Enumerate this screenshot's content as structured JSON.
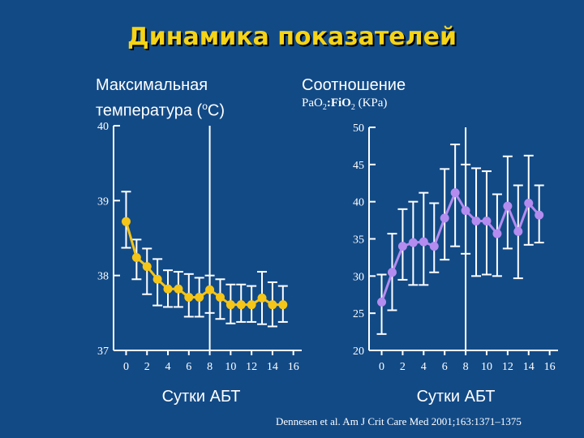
{
  "title": "Динамика показателей",
  "chart_data": [
    {
      "type": "line",
      "title_line1": "Максимальная",
      "title_line2_prefix": "температура (",
      "title_line2_sup": "o",
      "title_line2_suffix": "C)",
      "xlabel": "Сутки АБТ",
      "xlim": [
        -1.2,
        16.8
      ],
      "ylim": [
        37,
        40
      ],
      "yticks": [
        37,
        38,
        39,
        40
      ],
      "xticks": [
        0,
        2,
        4,
        6,
        8,
        10,
        12,
        14,
        16
      ],
      "vline_x": 8,
      "color": "#f5c518",
      "x": [
        0,
        1,
        2,
        3,
        4,
        5,
        6,
        7,
        8,
        9,
        10,
        11,
        12,
        13,
        14,
        15
      ],
      "y": [
        38.72,
        38.24,
        38.12,
        37.95,
        37.82,
        37.82,
        37.71,
        37.71,
        37.81,
        37.71,
        37.61,
        37.61,
        37.61,
        37.7,
        37.61,
        37.61
      ],
      "err_low": [
        38.37,
        37.95,
        37.75,
        37.6,
        37.58,
        37.58,
        37.45,
        37.45,
        37.5,
        37.42,
        37.36,
        37.38,
        37.38,
        37.35,
        37.32,
        37.38
      ],
      "err_high": [
        39.12,
        38.48,
        38.36,
        38.22,
        38.07,
        38.05,
        38.02,
        37.97,
        38.0,
        37.95,
        37.88,
        37.88,
        37.86,
        38.05,
        37.91,
        37.86
      ]
    },
    {
      "type": "line",
      "title": "Соотношение",
      "subtitle_parts": [
        "PaO",
        "2",
        ":FiO",
        "2",
        " (KPa)"
      ],
      "xlabel": "Сутки АБТ",
      "xlim": [
        -1.2,
        16.8
      ],
      "ylim": [
        20,
        50
      ],
      "yticks": [
        20,
        25,
        30,
        35,
        40,
        45,
        50
      ],
      "xticks": [
        0,
        2,
        4,
        6,
        8,
        10,
        12,
        14,
        16
      ],
      "vline_x": 8,
      "color": "#b48cf0",
      "x": [
        0,
        1,
        2,
        3,
        4,
        5,
        6,
        7,
        8,
        9,
        10,
        11,
        12,
        13,
        14,
        15
      ],
      "y": [
        26.5,
        30.5,
        34.0,
        34.5,
        34.6,
        34.0,
        37.8,
        41.2,
        38.8,
        37.4,
        37.4,
        35.7,
        39.4,
        36.0,
        39.8,
        38.2
      ],
      "err_low": [
        22.2,
        25.4,
        29.5,
        28.8,
        28.8,
        30.5,
        32.2,
        34.0,
        33.0,
        30.0,
        30.2,
        30.0,
        33.7,
        29.7,
        34.2,
        34.5
      ],
      "err_high": [
        30.2,
        35.7,
        39.0,
        40.0,
        41.2,
        39.8,
        44.4,
        47.7,
        45.0,
        44.5,
        44.1,
        41.0,
        46.1,
        42.2,
        46.2,
        42.2
      ]
    }
  ],
  "citation": "Dennesen et al. Am J Crit Care Med 2001;163:1371–1375"
}
